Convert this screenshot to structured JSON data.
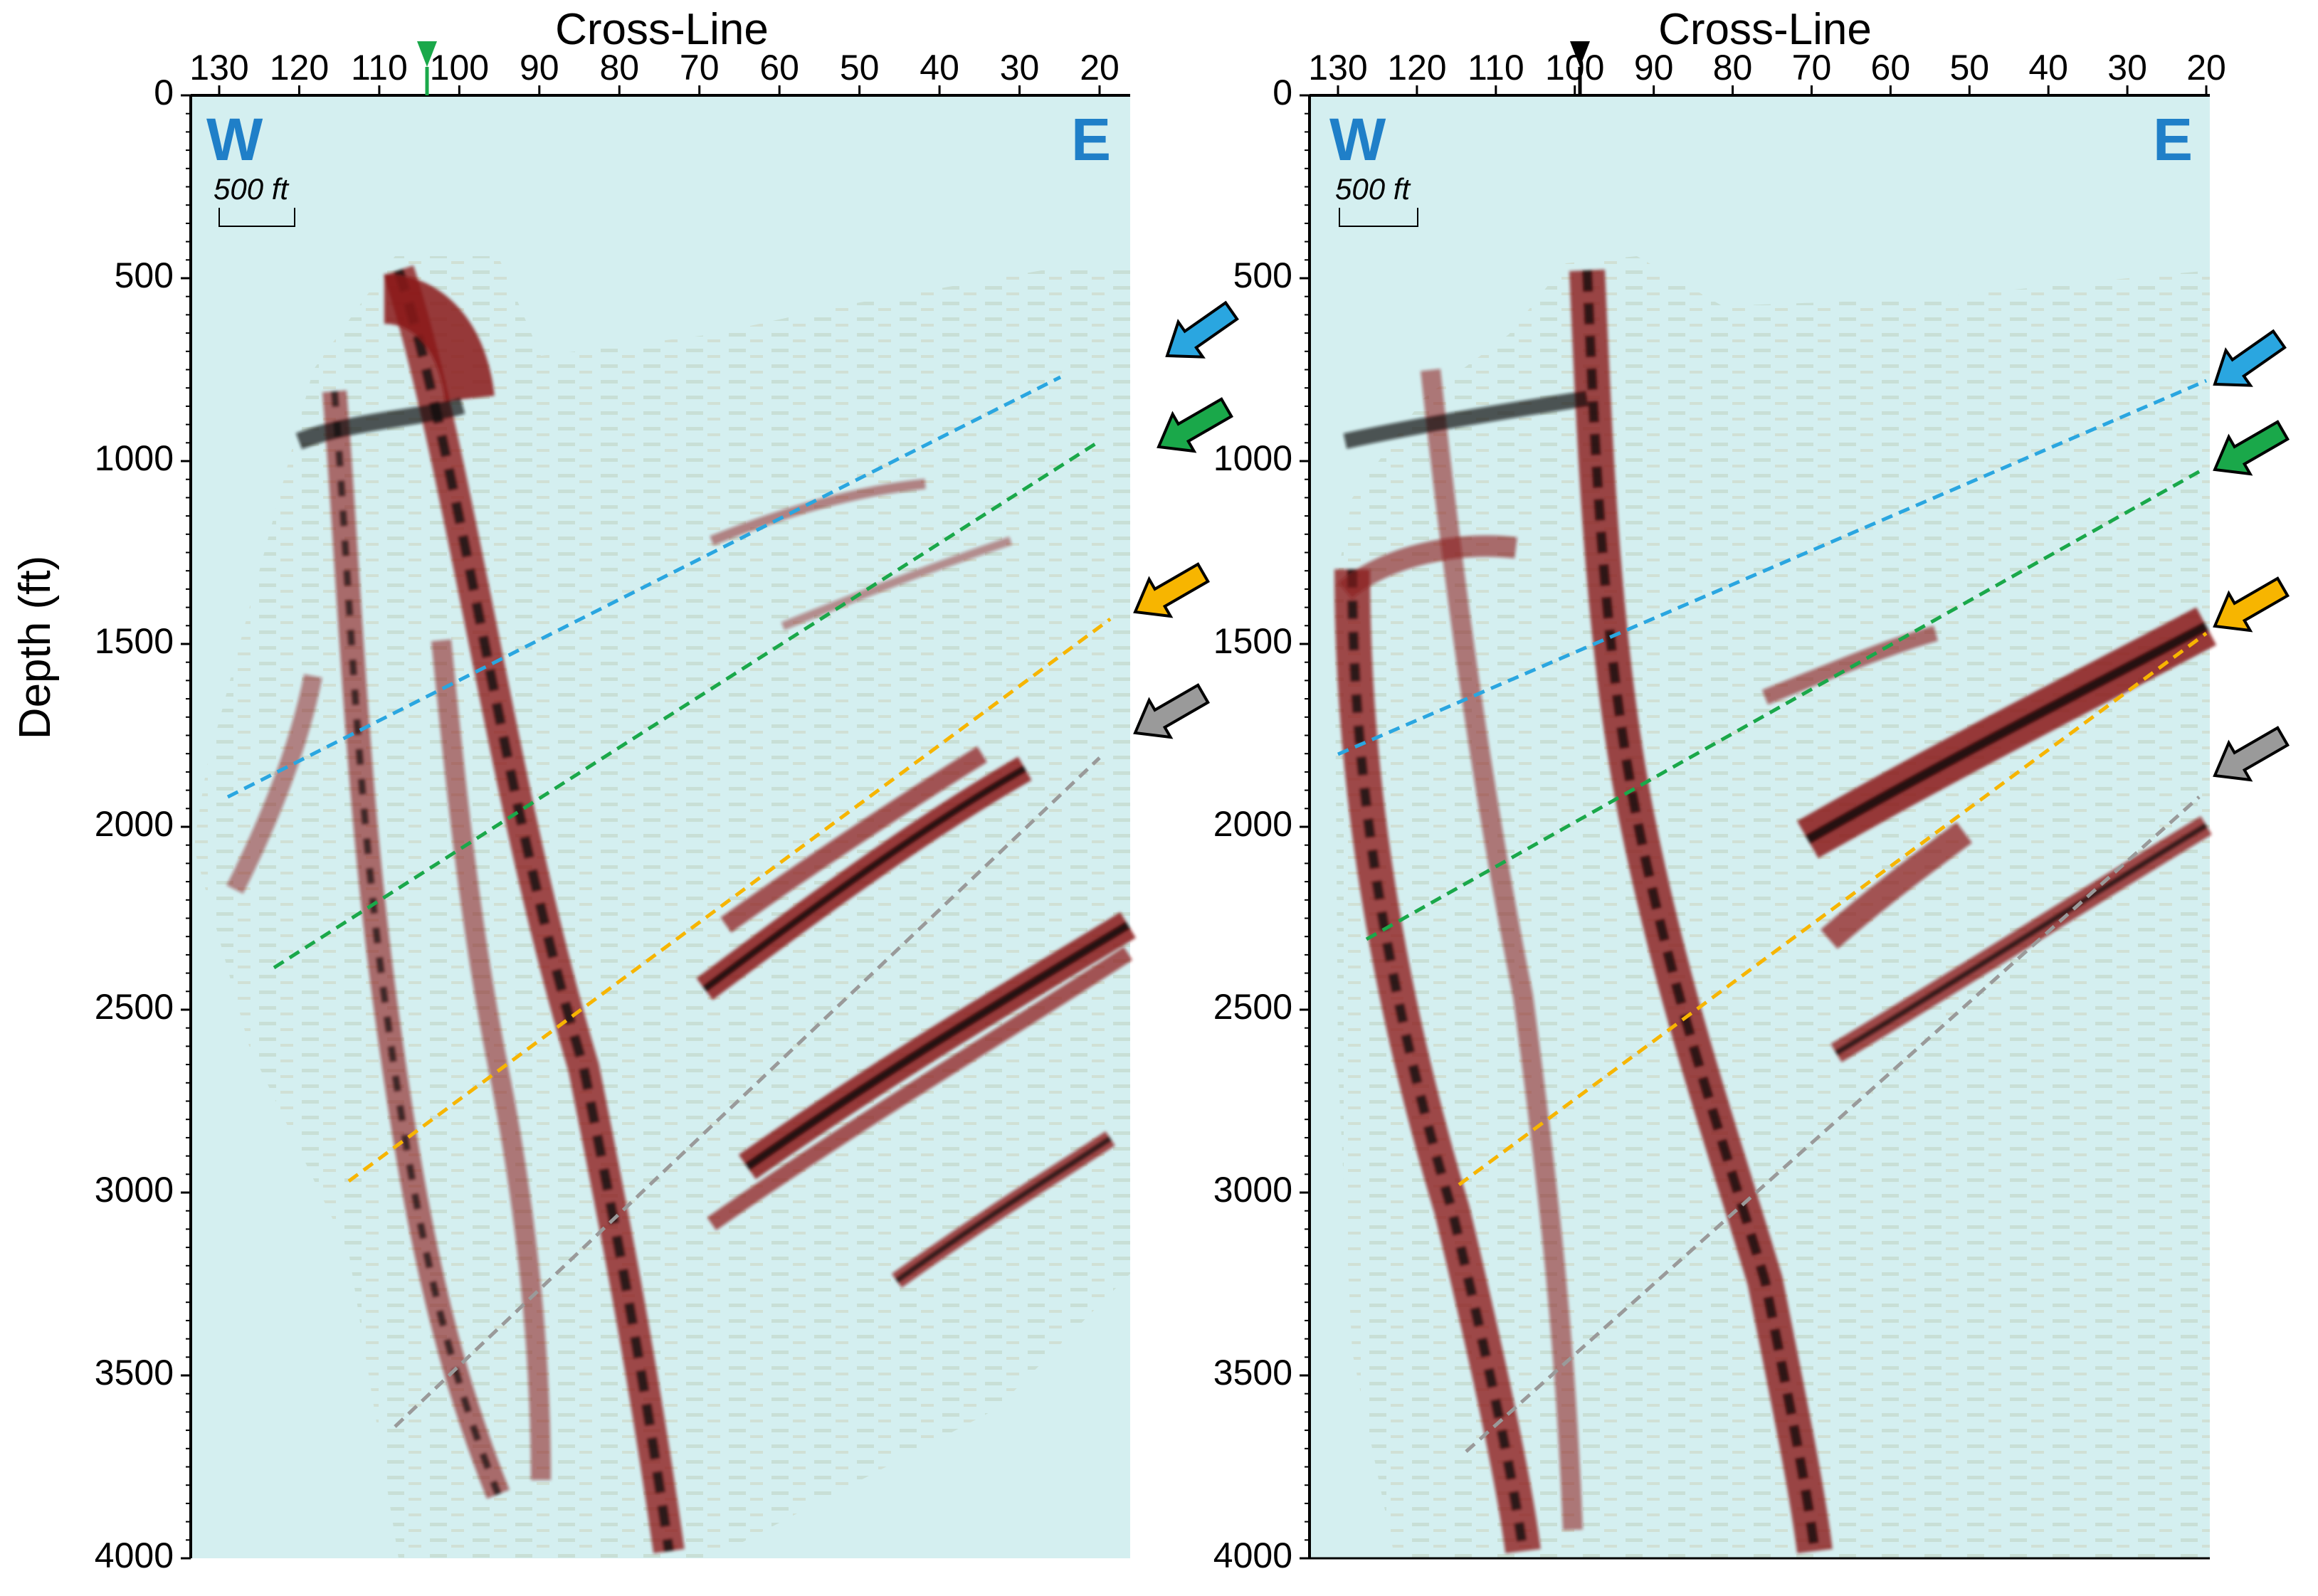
{
  "figure": {
    "y_axis_label": "Depth (ft)",
    "panels": [
      {
        "id": "left",
        "x_axis_label": "Cross-Line",
        "x_ticks": [
          "130",
          "120",
          "110",
          "100",
          "90",
          "80",
          "70",
          "60",
          "50",
          "40",
          "30",
          "20"
        ],
        "y_ticks": [
          "0",
          "500",
          "1000",
          "1500",
          "2000",
          "2500",
          "3000",
          "3500",
          "4000"
        ],
        "west_label": "W",
        "east_label": "E",
        "scale_bar_label": "500 ft",
        "marker_color": "#1aa84a"
      },
      {
        "id": "right",
        "x_axis_label": "Cross-Line",
        "x_ticks": [
          "130",
          "120",
          "110",
          "100",
          "90",
          "80",
          "70",
          "60",
          "50",
          "40",
          "30",
          "20"
        ],
        "y_ticks": [
          "0",
          "500",
          "1000",
          "1500",
          "2000",
          "2500",
          "3000",
          "3500",
          "4000"
        ],
        "west_label": "W",
        "east_label": "E",
        "scale_bar_label": "500 ft",
        "marker_color": "#000000"
      }
    ],
    "horizon_colors": {
      "blue": "#2aa6e0",
      "green": "#1aa84a",
      "orange": "#f7b500",
      "gray": "#9a9a9a"
    },
    "background_color": "#d4eff0",
    "label_color": "#1f7fc8"
  }
}
